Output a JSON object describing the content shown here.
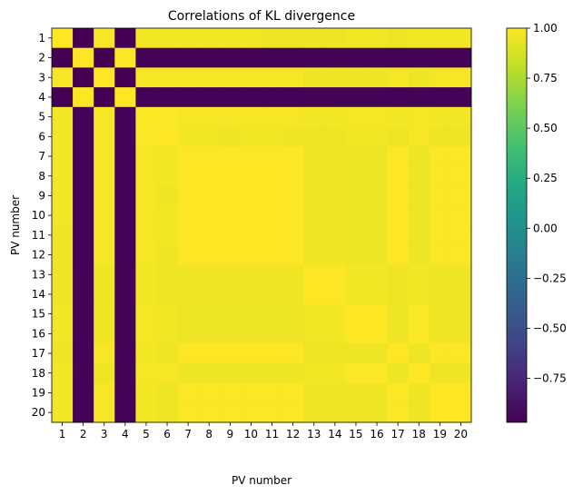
{
  "chart_data": {
    "type": "heatmap",
    "title": "Correlations of KL divergence",
    "xlabel": "PV number",
    "ylabel": "PV number",
    "x_categories": [
      "1",
      "2",
      "3",
      "4",
      "5",
      "6",
      "7",
      "8",
      "9",
      "10",
      "11",
      "12",
      "13",
      "14",
      "15",
      "16",
      "17",
      "18",
      "19",
      "20"
    ],
    "y_categories": [
      "1",
      "2",
      "3",
      "4",
      "5",
      "6",
      "7",
      "8",
      "9",
      "10",
      "11",
      "12",
      "13",
      "14",
      "15",
      "16",
      "17",
      "18",
      "19",
      "20"
    ],
    "colormap": "viridis",
    "vmin": -0.97,
    "vmax": 1.0,
    "colorbar_ticks": [
      1.0,
      0.75,
      0.5,
      0.25,
      0.0,
      -0.25,
      -0.5,
      -0.75
    ],
    "colorbar_tick_labels": [
      "1.00",
      "0.75",
      "0.50",
      "0.25",
      "0.00",
      "−0.25",
      "−0.50",
      "−0.75"
    ],
    "values": [
      [
        1.0,
        -0.97,
        0.98,
        -0.97,
        0.97,
        0.97,
        0.97,
        0.97,
        0.97,
        0.97,
        0.96,
        0.96,
        0.96,
        0.96,
        0.97,
        0.97,
        0.96,
        0.97,
        0.97,
        0.97
      ],
      [
        -0.97,
        1.0,
        -0.97,
        0.99,
        -0.96,
        -0.96,
        -0.96,
        -0.96,
        -0.96,
        -0.96,
        -0.96,
        -0.96,
        -0.95,
        -0.95,
        -0.95,
        -0.95,
        -0.96,
        -0.95,
        -0.96,
        -0.96
      ],
      [
        0.98,
        -0.97,
        1.0,
        -0.97,
        0.98,
        0.98,
        0.98,
        0.98,
        0.98,
        0.98,
        0.98,
        0.98,
        0.96,
        0.96,
        0.96,
        0.96,
        0.98,
        0.96,
        0.98,
        0.98
      ],
      [
        -0.97,
        0.99,
        -0.97,
        1.0,
        -0.96,
        -0.96,
        -0.96,
        -0.96,
        -0.96,
        -0.96,
        -0.96,
        -0.96,
        -0.95,
        -0.95,
        -0.95,
        -0.95,
        -0.96,
        -0.95,
        -0.96,
        -0.96
      ],
      [
        0.97,
        -0.96,
        0.98,
        -0.96,
        1.0,
        0.99,
        0.98,
        0.98,
        0.98,
        0.98,
        0.98,
        0.98,
        0.97,
        0.97,
        0.98,
        0.98,
        0.97,
        0.98,
        0.97,
        0.97
      ],
      [
        0.97,
        -0.96,
        0.98,
        -0.96,
        0.99,
        1.0,
        0.97,
        0.97,
        0.96,
        0.97,
        0.97,
        0.96,
        0.96,
        0.96,
        0.97,
        0.97,
        0.96,
        0.98,
        0.96,
        0.96
      ],
      [
        0.97,
        -0.96,
        0.98,
        -0.96,
        0.98,
        0.97,
        1.0,
        1.0,
        1.0,
        1.0,
        1.0,
        1.0,
        0.96,
        0.96,
        0.95,
        0.95,
        1.0,
        0.95,
        0.99,
        0.99
      ],
      [
        0.97,
        -0.96,
        0.98,
        -0.96,
        0.98,
        0.97,
        1.0,
        1.0,
        1.0,
        1.0,
        1.0,
        1.0,
        0.96,
        0.96,
        0.95,
        0.95,
        1.0,
        0.95,
        0.99,
        0.99
      ],
      [
        0.97,
        -0.96,
        0.98,
        -0.96,
        0.98,
        0.96,
        1.0,
        1.0,
        1.0,
        1.0,
        1.0,
        1.0,
        0.96,
        0.96,
        0.95,
        0.95,
        1.0,
        0.95,
        0.99,
        0.99
      ],
      [
        0.97,
        -0.96,
        0.98,
        -0.96,
        0.98,
        0.97,
        1.0,
        1.0,
        1.0,
        1.0,
        1.0,
        1.0,
        0.96,
        0.96,
        0.95,
        0.95,
        1.0,
        0.95,
        0.99,
        0.99
      ],
      [
        0.96,
        -0.96,
        0.98,
        -0.96,
        0.98,
        0.97,
        1.0,
        1.0,
        1.0,
        1.0,
        1.0,
        1.0,
        0.96,
        0.96,
        0.95,
        0.95,
        1.0,
        0.95,
        0.99,
        0.99
      ],
      [
        0.96,
        -0.96,
        0.98,
        -0.96,
        0.98,
        0.96,
        1.0,
        1.0,
        1.0,
        1.0,
        1.0,
        1.0,
        0.96,
        0.96,
        0.95,
        0.95,
        1.0,
        0.95,
        0.99,
        0.99
      ],
      [
        0.96,
        -0.95,
        0.96,
        -0.95,
        0.97,
        0.96,
        0.96,
        0.96,
        0.96,
        0.96,
        0.96,
        0.96,
        1.0,
        1.0,
        0.97,
        0.97,
        0.96,
        0.97,
        0.96,
        0.96
      ],
      [
        0.96,
        -0.95,
        0.96,
        -0.95,
        0.97,
        0.96,
        0.96,
        0.96,
        0.96,
        0.96,
        0.96,
        0.96,
        1.0,
        1.0,
        0.97,
        0.97,
        0.96,
        0.97,
        0.96,
        0.96
      ],
      [
        0.97,
        -0.95,
        0.96,
        -0.95,
        0.98,
        0.97,
        0.95,
        0.95,
        0.95,
        0.95,
        0.95,
        0.95,
        0.97,
        0.97,
        1.0,
        1.0,
        0.95,
        0.99,
        0.96,
        0.96
      ],
      [
        0.97,
        -0.95,
        0.96,
        -0.95,
        0.98,
        0.97,
        0.95,
        0.95,
        0.95,
        0.95,
        0.95,
        0.95,
        0.97,
        0.97,
        1.0,
        1.0,
        0.95,
        0.99,
        0.96,
        0.96
      ],
      [
        0.96,
        -0.96,
        0.98,
        -0.96,
        0.97,
        0.96,
        1.0,
        1.0,
        1.0,
        1.0,
        1.0,
        1.0,
        0.96,
        0.96,
        0.95,
        0.95,
        1.0,
        0.95,
        0.99,
        0.99
      ],
      [
        0.97,
        -0.95,
        0.96,
        -0.95,
        0.98,
        0.98,
        0.95,
        0.95,
        0.95,
        0.95,
        0.95,
        0.95,
        0.97,
        0.97,
        0.99,
        0.99,
        0.95,
        1.0,
        0.96,
        0.96
      ],
      [
        0.97,
        -0.96,
        0.98,
        -0.96,
        0.97,
        0.96,
        0.99,
        0.99,
        0.99,
        0.99,
        0.99,
        0.99,
        0.96,
        0.96,
        0.96,
        0.96,
        0.99,
        0.96,
        1.0,
        1.0
      ],
      [
        0.97,
        -0.96,
        0.98,
        -0.96,
        0.97,
        0.96,
        0.99,
        0.99,
        0.99,
        0.99,
        0.99,
        0.99,
        0.96,
        0.96,
        0.96,
        0.96,
        0.99,
        0.96,
        1.0,
        1.0
      ]
    ]
  }
}
